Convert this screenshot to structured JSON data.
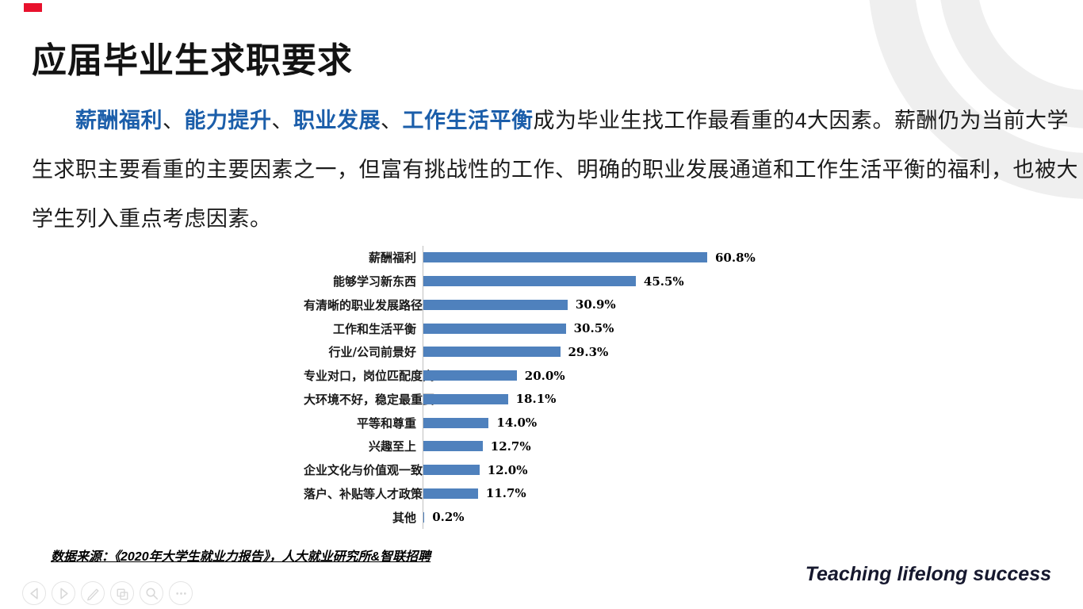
{
  "slide": {
    "title": "应届毕业生求职要求",
    "accent_color": "#e8112d",
    "highlight_color": "#1b5eaa",
    "paragraph": {
      "line1_segments": [
        {
          "text": "薪酬福利",
          "highlight": true
        },
        {
          "text": "、",
          "highlight": false
        },
        {
          "text": "能力提升",
          "highlight": true
        },
        {
          "text": "、",
          "highlight": false
        },
        {
          "text": "职业发展",
          "highlight": true
        },
        {
          "text": "、",
          "highlight": false
        },
        {
          "text": "工作生活平衡",
          "highlight": true
        },
        {
          "text": "成为毕业生找工作最看重的4大因素。薪酬仍为当前大学",
          "highlight": false
        }
      ],
      "line2": "生求职主要看重的主要因素之一，但富有挑战性的工作、明确的职业发展通道和工作生活平衡的福利，也被大",
      "line3": "学生列入重点考虑因素。"
    },
    "source_note": "数据来源：《2020年大学生就业力报告》，人大就业研究所&智联招聘",
    "tagline": "Teaching lifelong success"
  },
  "chart_data": {
    "type": "bar",
    "orientation": "horizontal",
    "bar_color": "#4f81bd",
    "axis_color": "#c0c0c0",
    "xlim": [
      0,
      65
    ],
    "grid": false,
    "legend": false,
    "categories": [
      "薪酬福利",
      "能够学习新东西",
      "有清晰的职业发展路径",
      "工作和生活平衡",
      "行业/公司前景好",
      "专业对口，岗位匹配度高",
      "大环境不好，稳定最重要",
      "平等和尊重",
      "兴趣至上",
      "企业文化与价值观一致",
      "落户、补贴等人才政策",
      "其他"
    ],
    "values": [
      60.8,
      45.5,
      30.9,
      30.5,
      29.3,
      20.0,
      18.1,
      14.0,
      12.7,
      12.0,
      11.7,
      0.2
    ],
    "value_labels": [
      "60.8%",
      "45.5%",
      "30.9%",
      "30.5%",
      "29.3%",
      "20.0%",
      "18.1%",
      "14.0%",
      "12.7%",
      "12.0%",
      "11.7%",
      "0.2%"
    ]
  },
  "controls": [
    {
      "name": "previous-slide-button",
      "icon": "prev"
    },
    {
      "name": "play-next-slide-button",
      "icon": "play"
    },
    {
      "name": "pen-annotate-button",
      "icon": "pen"
    },
    {
      "name": "slide-panel-button",
      "icon": "slides"
    },
    {
      "name": "zoom-magnifier-button",
      "icon": "magnifier"
    },
    {
      "name": "more-options-button",
      "icon": "ellipsis"
    }
  ]
}
